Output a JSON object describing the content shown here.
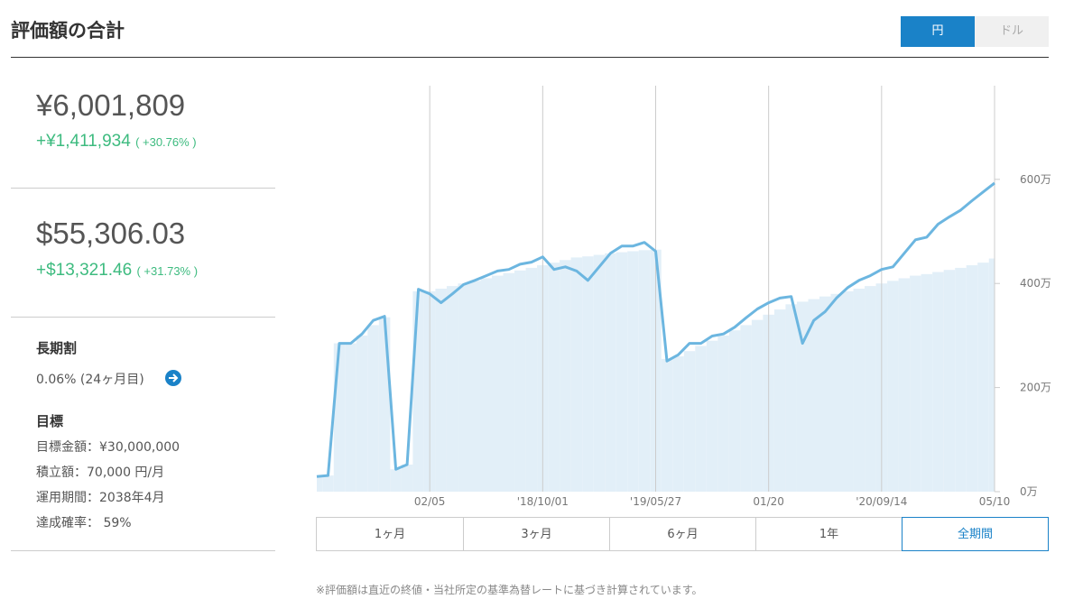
{
  "header": {
    "title": "評価額の合計",
    "currency_toggle": [
      "円",
      "ドル"
    ]
  },
  "summary": {
    "jpy": {
      "value": "¥6,001,809",
      "change": "+¥1,411,934",
      "change_pct": "( +30.76% )"
    },
    "usd": {
      "value": "$55,306.03",
      "change": "+$13,321.46",
      "change_pct": "( +31.73% )"
    }
  },
  "long_term_discount": {
    "title": "長期割",
    "text": "0.06% (24ヶ月目)"
  },
  "goal": {
    "title": "目標",
    "items": [
      "目標金額：¥30,000,000",
      "積立額：70,000 円/月",
      "運用期間：2038年4月",
      "達成確率： 59%"
    ]
  },
  "chart_data": {
    "type": "line",
    "categories": [
      null,
      null,
      null,
      null,
      null,
      null,
      null,
      null,
      null,
      null,
      "02/05",
      null,
      null,
      null,
      null,
      null,
      null,
      null,
      null,
      null,
      "'18/10/01",
      null,
      null,
      null,
      null,
      null,
      null,
      null,
      null,
      null,
      "'19/05/27",
      null,
      null,
      null,
      null,
      null,
      null,
      null,
      null,
      null,
      "01/20",
      null,
      null,
      null,
      null,
      null,
      null,
      null,
      null,
      null,
      "'20/09/14",
      null,
      null,
      null,
      null,
      null,
      null,
      null,
      null,
      null,
      "05/10"
    ],
    "series": [
      {
        "kind": "area",
        "color": "#e2eff8",
        "values": [
          29,
          31,
          285,
          285,
          300,
          320,
          335,
          43,
          52,
          385,
          385,
          390,
          395,
          400,
          405,
          410,
          415,
          420,
          425,
          430,
          435,
          440,
          445,
          450,
          452,
          455,
          458,
          460,
          462,
          464,
          465,
          255,
          260,
          270,
          280,
          290,
          300,
          310,
          320,
          330,
          340,
          350,
          360,
          365,
          370,
          375,
          380,
          385,
          390,
          395,
          400,
          405,
          410,
          415,
          418,
          422,
          426,
          430,
          435,
          440,
          448
        ]
      },
      {
        "kind": "line",
        "color": "#6cb6e0",
        "values": [
          29,
          31,
          285,
          285,
          303,
          329,
          337,
          43,
          52,
          389,
          380,
          363,
          380,
          398,
          406,
          415,
          424,
          427,
          437,
          441,
          451,
          427,
          432,
          424,
          406,
          432,
          458,
          472,
          472,
          479,
          462,
          251,
          263,
          285,
          285,
          299,
          303,
          316,
          334,
          351,
          363,
          372,
          375,
          285,
          329,
          346,
          372,
          392,
          406,
          415,
          427,
          432,
          458,
          484,
          489,
          514,
          528,
          541,
          559,
          576,
          593
        ]
      }
    ],
    "ylim": [
      0,
      780
    ],
    "yticks": [
      {
        "value": 0,
        "label": "0万"
      },
      {
        "value": 200,
        "label": "200万"
      },
      {
        "value": 400,
        "label": "400万"
      },
      {
        "value": 600,
        "label": "600万"
      }
    ]
  },
  "range_buttons": [
    "1ヶ月",
    "3ヶ月",
    "6ヶ月",
    "1年",
    "全期間"
  ],
  "footnote": "※評価額は直近の終値・当社所定の基準為替レートに基づき計算されています。"
}
